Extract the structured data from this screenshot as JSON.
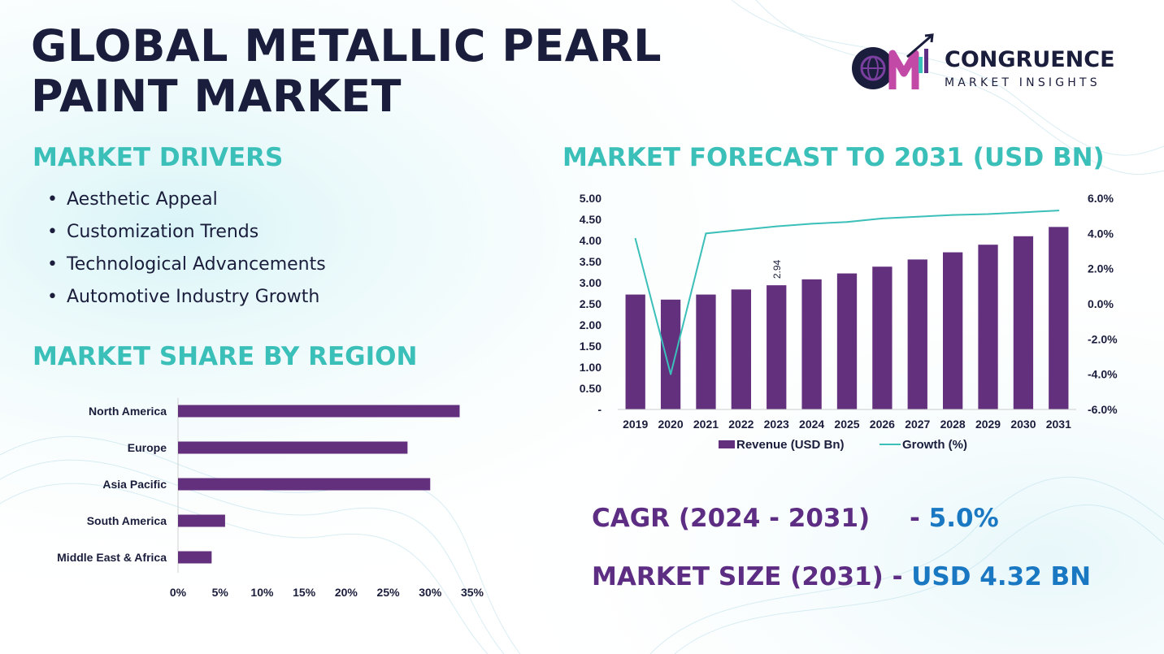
{
  "title": {
    "line1": "GLOBAL METALLIC PEARL",
    "line2": "PAINT MARKET"
  },
  "logo": {
    "monogram": "CM",
    "brand": "CONGRUENCE",
    "sub": "MARKET INSIGHTS"
  },
  "drivers": {
    "heading": "MARKET DRIVERS",
    "items": [
      "Aesthetic Appeal",
      "Customization Trends",
      "Technological Advancements",
      "Automotive Industry Growth"
    ]
  },
  "region": {
    "heading": "MARKET SHARE BY REGION"
  },
  "forecast": {
    "heading": "MARKET FORECAST TO 2031 (USD BN)"
  },
  "kpis": {
    "cagr_label": "CAGR (2024 - 2031)",
    "cagr_sep": "- ",
    "cagr_value": "5.0%",
    "size_label": "MARKET SIZE (2031)",
    "size_sep": "- ",
    "size_value": "USD 4.32 BN"
  },
  "colors": {
    "bar": "#63307e",
    "line": "#3bbfb9",
    "heading": "#3bbfb9",
    "title": "#1a1d3b",
    "kpi_label": "#5c2d82",
    "kpi_value": "#1a78c2"
  },
  "chart_data": [
    {
      "type": "bar",
      "orientation": "horizontal",
      "categories": [
        "North America",
        "Europe",
        "Asia Pacific",
        "South America",
        "Middle East & Africa"
      ],
      "values": [
        33.5,
        27.3,
        30.0,
        5.6,
        4.0
      ],
      "xlim": [
        0,
        35
      ],
      "xticks": [
        "0%",
        "5%",
        "10%",
        "15%",
        "20%",
        "25%",
        "30%",
        "35%"
      ],
      "grid": false
    },
    {
      "type": "bar",
      "categories": [
        "2019",
        "2020",
        "2021",
        "2022",
        "2023",
        "2024",
        "2025",
        "2026",
        "2027",
        "2028",
        "2029",
        "2030",
        "2031"
      ],
      "series": [
        {
          "name": "Revenue (USD Bn)",
          "type": "bar",
          "axis": "left",
          "values": [
            2.72,
            2.6,
            2.72,
            2.84,
            2.94,
            3.08,
            3.22,
            3.38,
            3.55,
            3.72,
            3.9,
            4.1,
            4.32
          ]
        },
        {
          "name": "Growth (%)",
          "type": "line",
          "axis": "right",
          "values": [
            3.7,
            -4.0,
            4.0,
            4.2,
            4.4,
            4.55,
            4.65,
            4.85,
            4.95,
            5.05,
            5.1,
            5.2,
            5.3
          ]
        }
      ],
      "data_labels": [
        {
          "category": "2023",
          "text": "2.94"
        }
      ],
      "ylim": [
        0,
        5
      ],
      "yticks": [
        "-",
        "0.50",
        "1.00",
        "1.50",
        "2.00",
        "2.50",
        "3.00",
        "3.50",
        "4.00",
        "4.50",
        "5.00"
      ],
      "y2lim": [
        -6,
        6
      ],
      "y2ticks": [
        "-6.0%",
        "-4.0%",
        "-2.0%",
        "0.0%",
        "2.0%",
        "4.0%",
        "6.0%"
      ],
      "legend": "bottom",
      "grid": false
    }
  ]
}
